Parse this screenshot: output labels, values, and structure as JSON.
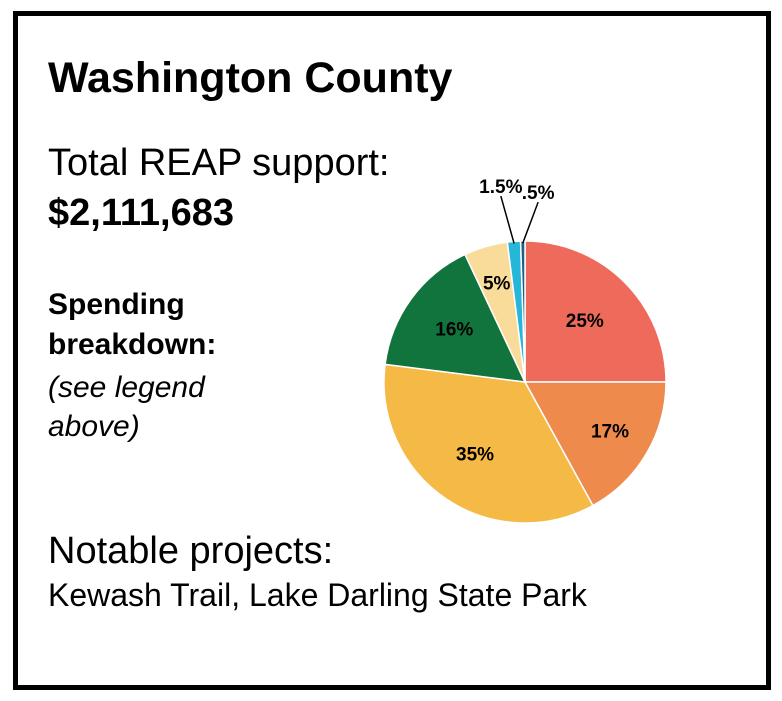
{
  "header": {
    "title": "Washington County"
  },
  "support": {
    "label": "Total REAP support:",
    "value": "$2,111,683"
  },
  "breakdown": {
    "label_line1": "Spending",
    "label_line2": "breakdown:",
    "note_line1": "(see legend",
    "note_line2": "above)"
  },
  "projects": {
    "label": "Notable projects:",
    "value": "Kewash Trail, Lake Darling State Park"
  },
  "chart_data": {
    "type": "pie",
    "unit": "%",
    "slices": [
      {
        "label": "25%",
        "value": 25,
        "color": "#ee6a5b"
      },
      {
        "label": "17%",
        "value": 17,
        "color": "#ee8a4c"
      },
      {
        "label": "35%",
        "value": 35,
        "color": "#f5b946"
      },
      {
        "label": "16%",
        "value": 16,
        "color": "#11743c"
      },
      {
        "label": "5%",
        "value": 5,
        "color": "#f9db9a"
      },
      {
        "label": "1.5%",
        "value": 1.5,
        "color": "#25b6d8"
      },
      {
        "label": ".5%",
        "value": 0.5,
        "color": "#1e5f89"
      }
    ]
  }
}
